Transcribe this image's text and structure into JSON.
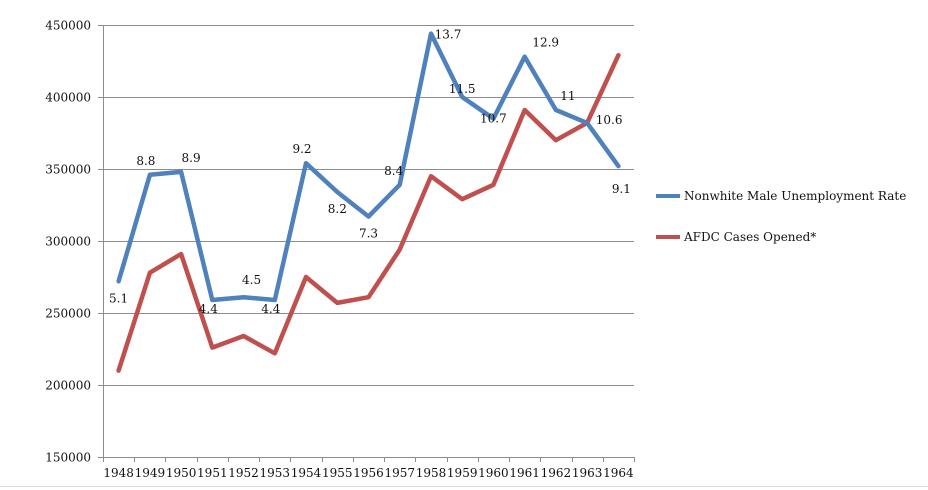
{
  "chart_data": {
    "type": "line",
    "x": [
      "1948",
      "1949",
      "1950",
      "1951",
      "1952",
      "1953",
      "1954",
      "1955",
      "1956",
      "1957",
      "1958",
      "1959",
      "1960",
      "1961",
      "1962",
      "1963",
      "1964"
    ],
    "ylim": [
      150000,
      450000
    ],
    "yticks": [
      "150000",
      "200000",
      "250000",
      "300000",
      "350000",
      "400000",
      "450000"
    ],
    "grid": "horizontal",
    "legend_position": "right",
    "series": [
      {
        "name": "Nonwhite Male Unemployment Rate",
        "color": "#4f81bd",
        "values": [
          272000,
          346000,
          348000,
          259000,
          261000,
          259000,
          354000,
          334000,
          317000,
          339000,
          444000,
          400000,
          385000,
          428000,
          391000,
          382000,
          352000
        ],
        "labels": [
          "5.1",
          "8.8",
          "8.9",
          "4.4",
          "4.5",
          "4.4",
          "9.2",
          "8.2",
          "7.3",
          "8.4",
          "13.7",
          "11.5",
          "10.7",
          "12.9",
          "11",
          "10.6",
          "9.1"
        ]
      },
      {
        "name": "AFDC Cases Opened*",
        "color": "#c0504d",
        "values": [
          210000,
          278000,
          291000,
          226000,
          234000,
          222000,
          275000,
          257000,
          261000,
          294000,
          345000,
          329000,
          339000,
          391000,
          370000,
          382000,
          429000
        ]
      }
    ]
  }
}
